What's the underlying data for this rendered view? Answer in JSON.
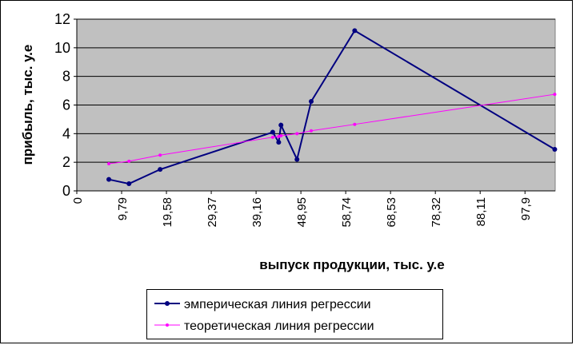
{
  "chart_data": {
    "type": "scatter-line",
    "x_label": "выпуск продукции, тыс. у.е",
    "y_label": "прибыль, тыс. у.е",
    "x": [
      7.0,
      11.4,
      18.2,
      42.8,
      44.1,
      44.6,
      48.1,
      51.2,
      60.7,
      104.4
    ],
    "series": [
      {
        "name": "эмперическая линия регрессии",
        "color": "#000080",
        "values": [
          0.8,
          0.5,
          1.5,
          4.1,
          3.4,
          4.6,
          2.2,
          6.25,
          11.2,
          2.9
        ]
      },
      {
        "name": "теоретическая линия регрессии",
        "color": "#ff00ff",
        "values": [
          1.9,
          2.07,
          2.5,
          3.75,
          3.8,
          3.85,
          4.0,
          4.2,
          4.65,
          6.75
        ]
      }
    ],
    "xlim": [
      0,
      104.5
    ],
    "xticks": [
      0,
      {
        "value": 9.79,
        "label": "9,79"
      },
      {
        "value": 19.58,
        "label": "19,58"
      },
      {
        "value": 29.37,
        "label": "29,37"
      },
      {
        "value": 39.16,
        "label": "39,16"
      },
      {
        "value": 48.95,
        "label": "48,95"
      },
      {
        "value": 58.74,
        "label": "58,74"
      },
      {
        "value": 68.53,
        "label": "68,53"
      },
      {
        "value": 78.32,
        "label": "78,32"
      },
      {
        "value": 88.11,
        "label": "88,11"
      },
      {
        "value": 97.9,
        "label": "97,9"
      }
    ],
    "ylim": [
      0,
      12
    ],
    "yticks": [
      0,
      2,
      4,
      6,
      8,
      10,
      12
    ],
    "grid": true,
    "legend": "bottom"
  }
}
